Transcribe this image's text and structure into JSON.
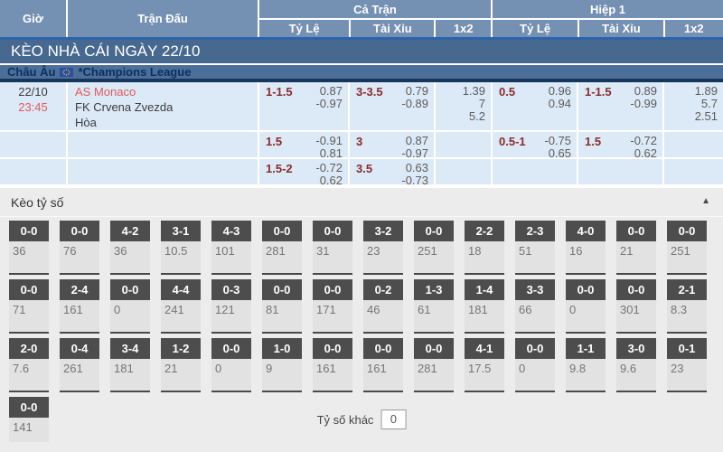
{
  "header": {
    "col_time": "Giờ",
    "col_match": "Trận Đấu",
    "group_full": "Cả Trận",
    "group_half": "Hiệp 1",
    "sub_cols": [
      "Tỷ Lệ",
      "Tài Xỉu",
      "1x2"
    ]
  },
  "title_bar": "KÈO NHÀ CÁI NGÀY 22/10",
  "league": {
    "region": "Châu Âu",
    "name": "*Champions League"
  },
  "match": {
    "date": "22/10",
    "time": "23:45",
    "home": "AS Monaco",
    "away": "FK Crvena Zvezda",
    "draw": "Hòa"
  },
  "odds_rows": [
    {
      "ft_hdp": {
        "line": "1-1.5",
        "over": "0.87",
        "under": "-0.97"
      },
      "ft_ou": {
        "line": "3-3.5",
        "over": "0.79",
        "under": "-0.89"
      },
      "ft_1x2": [
        "1.39",
        "7",
        "5.2"
      ],
      "h1_hdp": {
        "line": "0.5",
        "over": "0.96",
        "under": "0.94"
      },
      "h1_ou": {
        "line": "1-1.5",
        "over": "0.89",
        "under": "-0.99"
      },
      "h1_1x2": [
        "1.89",
        "5.7",
        "2.51"
      ]
    },
    {
      "ft_hdp": {
        "line": "1.5",
        "over": "-0.91",
        "under": "0.81"
      },
      "ft_ou": {
        "line": "3",
        "over": "0.87",
        "under": "-0.97"
      },
      "ft_1x2": [],
      "h1_hdp": {
        "line": "0.5-1",
        "over": "-0.75",
        "under": "0.65"
      },
      "h1_ou": {
        "line": "1.5",
        "over": "-0.72",
        "under": "0.62"
      },
      "h1_1x2": []
    },
    {
      "ft_hdp": {
        "line": "1.5-2",
        "over": "-0.72",
        "under": "0.62"
      },
      "ft_ou": {
        "line": "3.5",
        "over": "0.63",
        "under": "-0.73"
      },
      "ft_1x2": [],
      "h1_hdp": {},
      "h1_ou": {},
      "h1_1x2": []
    }
  ],
  "score_section": {
    "title": "Kèo tỷ số",
    "collapse_icon": "▲",
    "rows": [
      [
        [
          "0-0",
          "36"
        ],
        [
          "0-0",
          "76"
        ],
        [
          "4-2",
          "36"
        ],
        [
          "3-1",
          "10.5"
        ],
        [
          "4-3",
          "101"
        ],
        [
          "0-0",
          "281"
        ],
        [
          "0-0",
          "31"
        ],
        [
          "3-2",
          "23"
        ],
        [
          "0-0",
          "251"
        ],
        [
          "2-2",
          "18"
        ],
        [
          "2-3",
          "51"
        ],
        [
          "4-0",
          "16"
        ],
        [
          "0-0",
          "21"
        ],
        [
          "0-0",
          "251"
        ]
      ],
      [
        [
          "0-0",
          "71"
        ],
        [
          "2-4",
          "161"
        ],
        [
          "0-0",
          "0"
        ],
        [
          "4-4",
          "241"
        ],
        [
          "0-3",
          "121"
        ],
        [
          "0-0",
          "81"
        ],
        [
          "0-0",
          "171"
        ],
        [
          "0-2",
          "46"
        ],
        [
          "1-3",
          "61"
        ],
        [
          "1-4",
          "181"
        ],
        [
          "3-3",
          "66"
        ],
        [
          "0-0",
          "0"
        ],
        [
          "0-0",
          "301"
        ],
        [
          "2-1",
          "8.3"
        ]
      ],
      [
        [
          "2-0",
          "7.6"
        ],
        [
          "0-4",
          "261"
        ],
        [
          "3-4",
          "181"
        ],
        [
          "1-2",
          "21"
        ],
        [
          "0-0",
          "0"
        ],
        [
          "1-0",
          "9"
        ],
        [
          "0-0",
          "161"
        ],
        [
          "0-0",
          "161"
        ],
        [
          "0-0",
          "281"
        ],
        [
          "4-1",
          "17.5"
        ],
        [
          "0-0",
          "0"
        ],
        [
          "1-1",
          "9.8"
        ],
        [
          "3-0",
          "9.6"
        ],
        [
          "0-1",
          "23"
        ]
      ],
      [
        [
          "0-0",
          "141"
        ]
      ]
    ],
    "other_label": "Tỷ số khác",
    "other_value": "0"
  },
  "colors": {
    "header_blue": "#7490b2",
    "band_navy": "#47698f",
    "league_blue": "#4c6f9a",
    "accent_blue_line": "#2d63a9",
    "row_light_blue": "#dce9f6",
    "maroon_line": "#8b2b2b",
    "red_accent": "#e05a5a",
    "box_dark": "#4d4d4d",
    "section_gray": "#ececec"
  }
}
